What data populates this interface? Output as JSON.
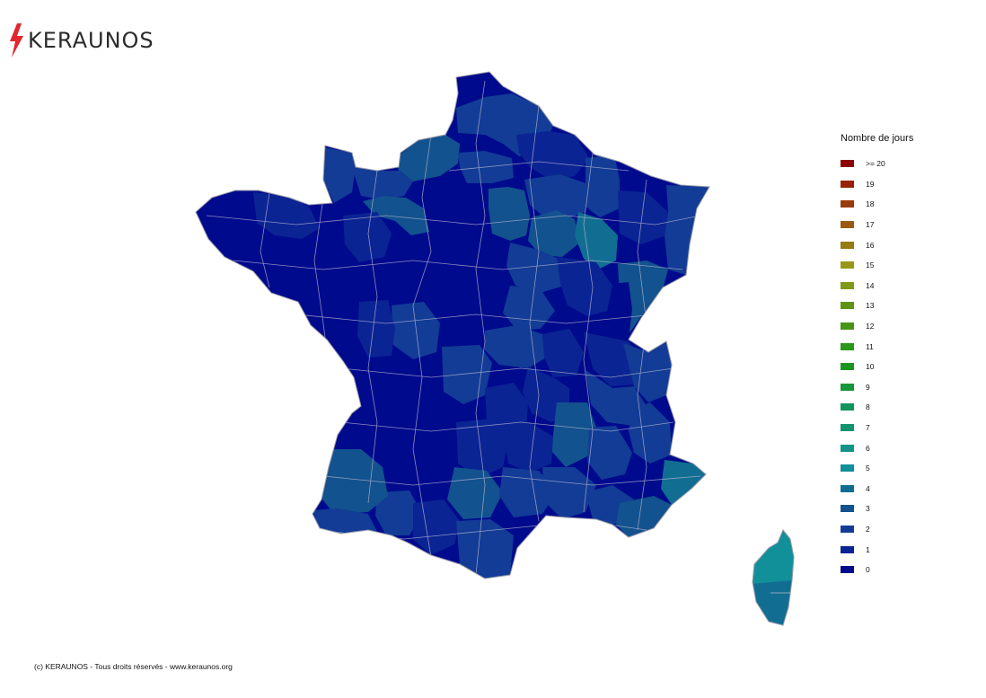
{
  "logo": {
    "text": "KERAUNOS",
    "icon": "lightning-bolt-icon",
    "icon_color": "#e0282e"
  },
  "legend": {
    "title": "Nombre de jours",
    "items": [
      {
        "label": ">= 20",
        "color": "#8b0000"
      },
      {
        "label": "19",
        "color": "#962208"
      },
      {
        "label": "18",
        "color": "#9a3a0c"
      },
      {
        "label": "17",
        "color": "#9b5a10"
      },
      {
        "label": "16",
        "color": "#967a12"
      },
      {
        "label": "15",
        "color": "#989818"
      },
      {
        "label": "14",
        "color": "#7f9a16"
      },
      {
        "label": "13",
        "color": "#5f9416"
      },
      {
        "label": "12",
        "color": "#469416"
      },
      {
        "label": "11",
        "color": "#2a961a"
      },
      {
        "label": "10",
        "color": "#1b961e"
      },
      {
        "label": "9",
        "color": "#16963a"
      },
      {
        "label": "8",
        "color": "#12945a"
      },
      {
        "label": "7",
        "color": "#139470"
      },
      {
        "label": "6",
        "color": "#129488"
      },
      {
        "label": "5",
        "color": "#11909a"
      },
      {
        "label": "4",
        "color": "#116e92"
      },
      {
        "label": "3",
        "color": "#12528e"
      },
      {
        "label": "2",
        "color": "#123c96"
      },
      {
        "label": "1",
        "color": "#0b2494"
      },
      {
        "label": "0",
        "color": "#000a8c"
      }
    ]
  },
  "copyright": "(c) KERAUNOS - Tous droits réservés - www.keraunos.org"
}
